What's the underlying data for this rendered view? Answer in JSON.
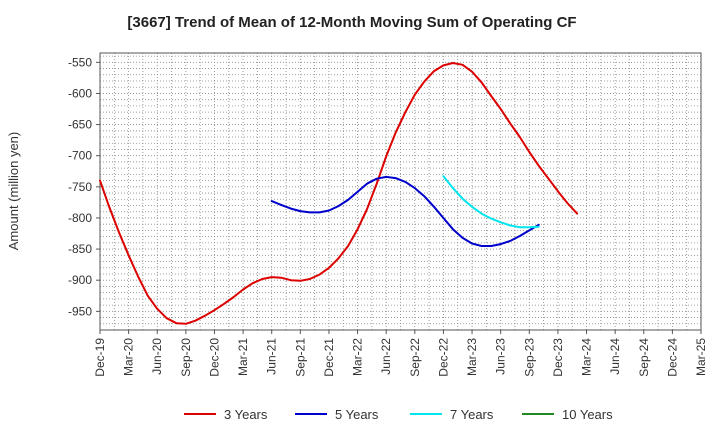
{
  "chart_data": {
    "type": "line",
    "title": "[3667]  Trend of Mean of 12-Month Moving Sum of Operating CF",
    "xlabel": "",
    "ylabel": "Amount (million yen)",
    "ylim": [
      -980,
      -535
    ],
    "yticks": [
      -550,
      -600,
      -650,
      -700,
      -750,
      -800,
      -850,
      -900,
      -950
    ],
    "categories": [
      "Dec-19",
      "Mar-20",
      "Jun-20",
      "Sep-20",
      "Dec-20",
      "Mar-21",
      "Jun-21",
      "Sep-21",
      "Dec-21",
      "Mar-22",
      "Jun-22",
      "Sep-22",
      "Dec-22",
      "Mar-23",
      "Jun-23",
      "Sep-23",
      "Dec-23",
      "Mar-24",
      "Jun-24",
      "Sep-24",
      "Dec-24",
      "Mar-25"
    ],
    "grid": true,
    "legend_position": "bottom",
    "series": [
      {
        "name": "3 Years",
        "color": "#dd0000",
        "points": [
          [
            0,
            -740
          ],
          [
            0.33,
            -783
          ],
          [
            0.67,
            -824
          ],
          [
            1,
            -860
          ],
          [
            1.33,
            -894
          ],
          [
            1.67,
            -925
          ],
          [
            2,
            -946
          ],
          [
            2.33,
            -961
          ],
          [
            2.67,
            -969
          ],
          [
            3,
            -970
          ],
          [
            3.33,
            -965
          ],
          [
            3.67,
            -957
          ],
          [
            4,
            -948
          ],
          [
            4.33,
            -938
          ],
          [
            4.67,
            -927
          ],
          [
            5,
            -915
          ],
          [
            5.33,
            -905
          ],
          [
            5.67,
            -898
          ],
          [
            6,
            -895
          ],
          [
            6.33,
            -896
          ],
          [
            6.67,
            -900
          ],
          [
            7,
            -901
          ],
          [
            7.33,
            -898
          ],
          [
            7.67,
            -891
          ],
          [
            8,
            -880
          ],
          [
            8.33,
            -865
          ],
          [
            8.67,
            -845
          ],
          [
            9,
            -818
          ],
          [
            9.33,
            -786
          ],
          [
            9.67,
            -745
          ],
          [
            10,
            -701
          ],
          [
            10.33,
            -663
          ],
          [
            10.67,
            -630
          ],
          [
            11,
            -602
          ],
          [
            11.33,
            -581
          ],
          [
            11.67,
            -564
          ],
          [
            12,
            -555
          ],
          [
            12.33,
            -551
          ],
          [
            12.67,
            -554
          ],
          [
            13,
            -565
          ],
          [
            13.33,
            -582
          ],
          [
            13.67,
            -604
          ],
          [
            14,
            -625
          ],
          [
            14.33,
            -648
          ],
          [
            14.67,
            -670
          ],
          [
            15,
            -694
          ],
          [
            15.33,
            -716
          ],
          [
            15.67,
            -737
          ],
          [
            16,
            -757
          ],
          [
            16.33,
            -776
          ],
          [
            16.67,
            -793
          ]
        ]
      },
      {
        "name": "5 Years",
        "color": "#0000cc",
        "points": [
          [
            6,
            -773
          ],
          [
            6.33,
            -779
          ],
          [
            6.67,
            -785
          ],
          [
            7,
            -789
          ],
          [
            7.33,
            -791
          ],
          [
            7.67,
            -791
          ],
          [
            8,
            -788
          ],
          [
            8.33,
            -781
          ],
          [
            8.67,
            -771
          ],
          [
            9,
            -758
          ],
          [
            9.33,
            -745
          ],
          [
            9.67,
            -737
          ],
          [
            10,
            -734
          ],
          [
            10.33,
            -736
          ],
          [
            10.67,
            -742
          ],
          [
            11,
            -752
          ],
          [
            11.33,
            -765
          ],
          [
            11.67,
            -782
          ],
          [
            12,
            -800
          ],
          [
            12.33,
            -818
          ],
          [
            12.67,
            -832
          ],
          [
            13,
            -841
          ],
          [
            13.33,
            -845
          ],
          [
            13.67,
            -845
          ],
          [
            14,
            -842
          ],
          [
            14.33,
            -837
          ],
          [
            14.67,
            -829
          ],
          [
            15,
            -820
          ],
          [
            15.33,
            -811
          ]
        ]
      },
      {
        "name": "7 Years",
        "color": "#00e5ee",
        "points": [
          [
            12,
            -733
          ],
          [
            12.33,
            -752
          ],
          [
            12.67,
            -769
          ],
          [
            13,
            -782
          ],
          [
            13.33,
            -793
          ],
          [
            13.67,
            -801
          ],
          [
            14,
            -807
          ],
          [
            14.33,
            -812
          ],
          [
            14.67,
            -815
          ],
          [
            15,
            -815
          ],
          [
            15.33,
            -814
          ]
        ]
      },
      {
        "name": "10 Years",
        "color": "#228822",
        "points": []
      }
    ]
  }
}
